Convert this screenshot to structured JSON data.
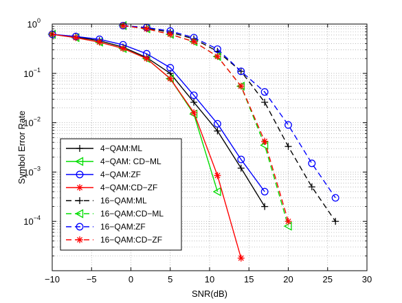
{
  "chart_data": {
    "type": "line",
    "title": "",
    "xlabel": "SNR(dB)",
    "ylabel": "Symbol Error Rate",
    "xlim": [
      -10,
      30
    ],
    "ylim": [
      1e-05,
      1
    ],
    "yscale": "log",
    "grid": true,
    "legend_position": "bottom-left",
    "x_ticks": [
      "-10",
      "-5",
      "0",
      "5",
      "10",
      "15",
      "20",
      "25",
      "30"
    ],
    "y_ticks": [
      {
        "base": "10",
        "exp": "0",
        "value": 1
      },
      {
        "base": "10",
        "exp": "-1",
        "value": 0.1
      },
      {
        "base": "10",
        "exp": "-2",
        "value": 0.01
      },
      {
        "base": "10",
        "exp": "-3",
        "value": 0.001
      },
      {
        "base": "10",
        "exp": "-4",
        "value": 0.0001
      }
    ],
    "series": [
      {
        "name": "4−QAM:ML",
        "color": "#000000",
        "dash": "solid",
        "marker": "plus",
        "x": [
          -10,
          -7,
          -4,
          -1,
          2,
          5,
          8,
          11,
          14,
          17
        ],
        "y": [
          0.62,
          0.55,
          0.46,
          0.34,
          0.21,
          0.1,
          0.026,
          0.0068,
          0.0012,
          0.0002
        ]
      },
      {
        "name": "4−QAM: CD−ML",
        "color": "#00dd00",
        "dash": "solid",
        "marker": "triangle-left",
        "x": [
          -10,
          -7,
          -4,
          -1,
          2,
          5,
          8,
          11
        ],
        "y": [
          0.62,
          0.53,
          0.43,
          0.32,
          0.2,
          0.078,
          0.015,
          0.0004
        ]
      },
      {
        "name": "4−QAM:ZF",
        "color": "#0000ff",
        "dash": "solid",
        "marker": "circle",
        "x": [
          -10,
          -7,
          -4,
          -1,
          2,
          5,
          8,
          11,
          14,
          17
        ],
        "y": [
          0.62,
          0.56,
          0.49,
          0.38,
          0.25,
          0.13,
          0.036,
          0.0095,
          0.0018,
          0.0004
        ]
      },
      {
        "name": "4−QAM:CD−ZF",
        "color": "#ff0000",
        "dash": "solid",
        "marker": "asterisk",
        "x": [
          -10,
          -7,
          -4,
          -1,
          2,
          5,
          8,
          11,
          14
        ],
        "y": [
          0.62,
          0.53,
          0.43,
          0.32,
          0.2,
          0.078,
          0.016,
          0.00085,
          1.8e-05
        ]
      },
      {
        "name": "16−QAM:ML",
        "color": "#000000",
        "dash": "dashed",
        "marker": "plus",
        "x": [
          -1,
          2,
          5,
          8,
          11,
          14,
          17,
          20,
          23,
          26
        ],
        "y": [
          0.93,
          0.83,
          0.68,
          0.5,
          0.28,
          0.11,
          0.026,
          0.0033,
          0.0005,
          0.0001
        ]
      },
      {
        "name": "16−QAM:CD−ML",
        "color": "#00dd00",
        "dash": "dashed",
        "marker": "triangle-left",
        "x": [
          -1,
          2,
          5,
          8,
          11,
          14,
          17,
          20
        ],
        "y": [
          0.93,
          0.8,
          0.62,
          0.44,
          0.22,
          0.055,
          0.0035,
          8e-05
        ]
      },
      {
        "name": "16−QAM:ZF",
        "color": "#0000ff",
        "dash": "dashed",
        "marker": "circle",
        "x": [
          -1,
          2,
          5,
          8,
          11,
          14,
          17,
          20,
          23,
          26
        ],
        "y": [
          0.93,
          0.85,
          0.72,
          0.53,
          0.31,
          0.11,
          0.042,
          0.009,
          0.0015,
          0.0003
        ]
      },
      {
        "name": "16−QAM:CD−ZF",
        "color": "#ff0000",
        "dash": "dashed",
        "marker": "asterisk",
        "x": [
          -1,
          2,
          5,
          8,
          11,
          14,
          17,
          20
        ],
        "y": [
          0.93,
          0.8,
          0.62,
          0.44,
          0.22,
          0.055,
          0.0042,
          0.0001
        ]
      }
    ]
  }
}
